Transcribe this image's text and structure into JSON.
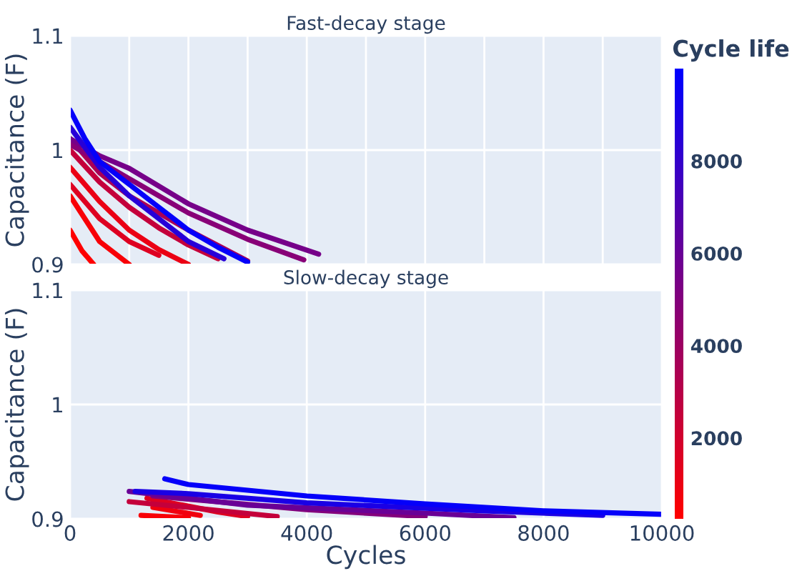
{
  "chart_data": [
    {
      "type": "line",
      "title": "Fast-decay stage",
      "ylabel": "Capacitance (F)",
      "xlim": [
        0,
        10000
      ],
      "ylim": [
        0.9,
        1.1
      ],
      "xticks": [
        {
          "value": 0,
          "label": null
        },
        {
          "value": 1000,
          "label": null
        },
        {
          "value": 2000,
          "label": null
        },
        {
          "value": 3000,
          "label": null
        },
        {
          "value": 4000,
          "label": null
        },
        {
          "value": 5000,
          "label": null
        },
        {
          "value": 6000,
          "label": null
        },
        {
          "value": 7000,
          "label": null
        },
        {
          "value": 8000,
          "label": null
        },
        {
          "value": 9000,
          "label": null
        },
        {
          "value": 10000,
          "label": null
        }
      ],
      "yticks": [
        0.9,
        1,
        1.1
      ],
      "tick_labels": "y",
      "grid": true,
      "clabel": "Cycle life",
      "clim": [
        250,
        10000
      ],
      "cticks": [
        2000,
        4000,
        6000,
        8000
      ],
      "series": [
        {
          "color": "#fe0001",
          "x": [
            0,
            200,
            400
          ],
          "values": [
            0.93,
            0.912,
            0.9
          ]
        },
        {
          "color": "#f80007",
          "x": [
            0,
            250,
            500,
            1000
          ],
          "values": [
            0.96,
            0.94,
            0.92,
            0.9
          ]
        },
        {
          "color": "#eb0014",
          "x": [
            0,
            500,
            1000,
            1500,
            2000
          ],
          "values": [
            0.985,
            0.955,
            0.93,
            0.913,
            0.9
          ]
        },
        {
          "color": "#de0021",
          "x": [
            0,
            500,
            1000,
            1500
          ],
          "values": [
            0.97,
            0.94,
            0.92,
            0.908
          ]
        },
        {
          "color": "#c4003b",
          "x": [
            0,
            500,
            1000,
            1500,
            2000,
            2500
          ],
          "values": [
            1.0,
            0.972,
            0.95,
            0.932,
            0.917,
            0.905
          ]
        },
        {
          "color": "#aa0055",
          "x": [
            0,
            500,
            1000,
            2000,
            3000
          ],
          "values": [
            1.01,
            0.98,
            0.96,
            0.93,
            0.903
          ]
        },
        {
          "color": "#880077",
          "x": [
            0,
            1000,
            2000,
            3000,
            3950
          ],
          "values": [
            1.005,
            0.975,
            0.945,
            0.922,
            0.904
          ]
        },
        {
          "color": "#760089",
          "x": [
            0,
            500,
            1000,
            2000,
            3000,
            4200
          ],
          "values": [
            1.01,
            0.995,
            0.984,
            0.953,
            0.93,
            0.909
          ]
        },
        {
          "color": "#2700d8",
          "x": [
            0,
            500,
            1000,
            1500,
            2000,
            2600
          ],
          "values": [
            1.02,
            0.985,
            0.96,
            0.94,
            0.92,
            0.905
          ]
        },
        {
          "color": "#0500fa",
          "x": [
            0,
            250,
            500,
            1000,
            1500,
            2000,
            2500,
            3000
          ],
          "values": [
            1.035,
            1.01,
            0.99,
            0.97,
            0.95,
            0.93,
            0.915,
            0.902
          ]
        }
      ]
    },
    {
      "type": "line",
      "title": "Slow-decay stage",
      "xlabel": "Cycles",
      "ylabel": "Capacitance (F)",
      "xlim": [
        0,
        10000
      ],
      "ylim": [
        0.9,
        1.1
      ],
      "xticks": [
        0,
        2000,
        4000,
        6000,
        8000,
        10000
      ],
      "yticks": [
        0.9,
        1,
        1.1
      ],
      "grid": true,
      "series": [
        {
          "color": "#f80007",
          "x": [
            1200,
            2000
          ],
          "values": [
            0.903,
            0.901
          ]
        },
        {
          "color": "#f1000e",
          "x": [
            1400,
            2200
          ],
          "values": [
            0.91,
            0.903
          ]
        },
        {
          "color": "#de0021",
          "x": [
            1300,
            2500,
            3000
          ],
          "values": [
            0.918,
            0.906,
            0.902
          ]
        },
        {
          "color": "#c4003b",
          "x": [
            1000,
            2000,
            3500
          ],
          "values": [
            0.915,
            0.91,
            0.902
          ]
        },
        {
          "color": "#83007c",
          "x": [
            1400,
            4000,
            6000
          ],
          "values": [
            0.92,
            0.908,
            0.902
          ]
        },
        {
          "color": "#690096",
          "x": [
            1000,
            3000,
            6000,
            7500
          ],
          "values": [
            0.924,
            0.912,
            0.905,
            0.901
          ]
        },
        {
          "color": "#1a00e5",
          "x": [
            1100,
            2000,
            4000,
            7000,
            9000
          ],
          "values": [
            0.924,
            0.922,
            0.914,
            0.907,
            0.903
          ]
        },
        {
          "color": "#0500fa",
          "x": [
            1600,
            2000,
            4000,
            6000,
            8000,
            10000
          ],
          "values": [
            0.935,
            0.93,
            0.92,
            0.913,
            0.907,
            0.904
          ]
        }
      ]
    }
  ]
}
